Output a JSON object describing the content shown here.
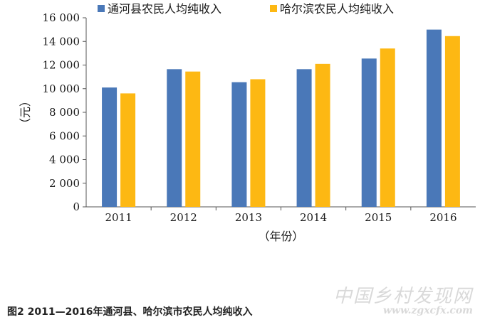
{
  "chart_data": {
    "type": "bar",
    "categories": [
      "2011",
      "2012",
      "2013",
      "2014",
      "2015",
      "2016"
    ],
    "series": [
      {
        "name": "通河县农民人均纯收入",
        "color": "#4a78b8",
        "values": [
          10100,
          11650,
          10550,
          11650,
          12550,
          15000
        ]
      },
      {
        "name": "哈尔滨农民人均纯收入",
        "color": "#fdb813",
        "values": [
          9600,
          11450,
          10800,
          12100,
          13400,
          14450
        ]
      }
    ],
    "ylim": [
      0,
      16000
    ],
    "yticks": [
      0,
      2000,
      4000,
      6000,
      8000,
      10000,
      12000,
      14000,
      16000
    ],
    "ytick_labels": [
      "0",
      "2 000",
      "4 000",
      "6 000",
      "8 000",
      "10 000",
      "12 000",
      "14 000",
      "16 000"
    ],
    "xlabel": "（年份）",
    "ylabel": "（元）",
    "grid": false,
    "legend_position": "top"
  },
  "caption": "图2 2011—2016年通河县、哈尔滨市农民人均纯收入",
  "watermark": {
    "cn": "中国乡村发现网",
    "url": "www.zgxcfx.com"
  }
}
